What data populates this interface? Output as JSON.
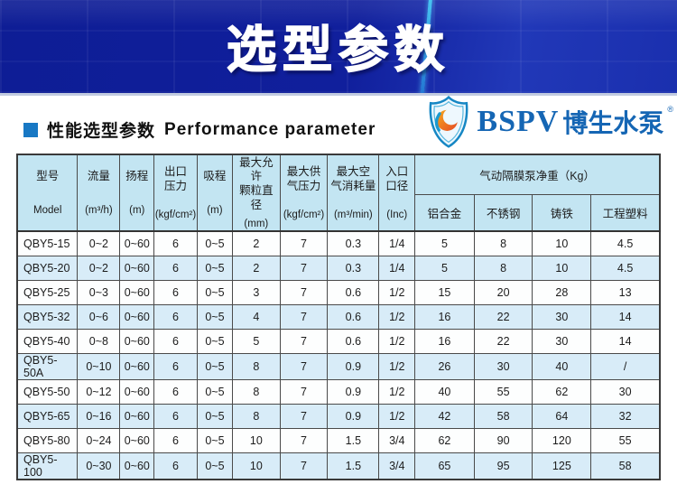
{
  "banner": {
    "title": "选型参数",
    "bg_color": "#101f9c",
    "streak_color": "#2e9fe6",
    "title_color": "#ffffff"
  },
  "section": {
    "title_zh": "性能选型参数",
    "title_en": "Performance parameter",
    "bullet_color": "#1878c4"
  },
  "logo": {
    "brand": "BSPV",
    "brand_zh": "博生水泵",
    "reg_mark": "®",
    "blue": "#1566b4",
    "orange": "#f08a1d"
  },
  "table": {
    "header_bg": "#c3e5f2",
    "alt_row_bg": "#d8ecf8",
    "headers": [
      {
        "zh": "型号",
        "unit": "Model"
      },
      {
        "zh": "流量",
        "unit": "(m³/h)"
      },
      {
        "zh": "扬程",
        "unit": "(m)"
      },
      {
        "zh": "出口\n压力",
        "unit": "(kgf/cm²)"
      },
      {
        "zh": "吸程",
        "unit": "(m)"
      },
      {
        "zh": "最大允许\n颗粒直径",
        "unit": "(mm)"
      },
      {
        "zh": "最大供\n气压力",
        "unit": "(kgf/cm²)"
      },
      {
        "zh": "最大空\n气消耗量",
        "unit": "(m³/min)"
      },
      {
        "zh": "入口\n口径",
        "unit": "(Inc)"
      }
    ],
    "weight_group": {
      "label": "气动隔膜泵净重（Kg）",
      "sub_headers": [
        "铝合金",
        "不锈钢",
        "铸铁",
        "工程塑料"
      ]
    },
    "rows": [
      [
        "QBY5-15",
        "0~2",
        "0~60",
        "6",
        "0~5",
        "2",
        "7",
        "0.3",
        "1/4",
        "5",
        "8",
        "10",
        "4.5"
      ],
      [
        "QBY5-20",
        "0~2",
        "0~60",
        "6",
        "0~5",
        "2",
        "7",
        "0.3",
        "1/4",
        "5",
        "8",
        "10",
        "4.5"
      ],
      [
        "QBY5-25",
        "0~3",
        "0~60",
        "6",
        "0~5",
        "3",
        "7",
        "0.6",
        "1/2",
        "15",
        "20",
        "28",
        "13"
      ],
      [
        "QBY5-32",
        "0~6",
        "0~60",
        "6",
        "0~5",
        "4",
        "7",
        "0.6",
        "1/2",
        "16",
        "22",
        "30",
        "14"
      ],
      [
        "QBY5-40",
        "0~8",
        "0~60",
        "6",
        "0~5",
        "5",
        "7",
        "0.6",
        "1/2",
        "16",
        "22",
        "30",
        "14"
      ],
      [
        "QBY5-50A",
        "0~10",
        "0~60",
        "6",
        "0~5",
        "8",
        "7",
        "0.9",
        "1/2",
        "26",
        "30",
        "40",
        "/"
      ],
      [
        "QBY5-50",
        "0~12",
        "0~60",
        "6",
        "0~5",
        "8",
        "7",
        "0.9",
        "1/2",
        "40",
        "55",
        "62",
        "30"
      ],
      [
        "QBY5-65",
        "0~16",
        "0~60",
        "6",
        "0~5",
        "8",
        "7",
        "0.9",
        "1/2",
        "42",
        "58",
        "64",
        "32"
      ],
      [
        "QBY5-80",
        "0~24",
        "0~60",
        "6",
        "0~5",
        "10",
        "7",
        "1.5",
        "3/4",
        "62",
        "90",
        "120",
        "55"
      ],
      [
        "QBY5-100",
        "0~30",
        "0~60",
        "6",
        "0~5",
        "10",
        "7",
        "1.5",
        "3/4",
        "65",
        "95",
        "125",
        "58"
      ]
    ]
  }
}
